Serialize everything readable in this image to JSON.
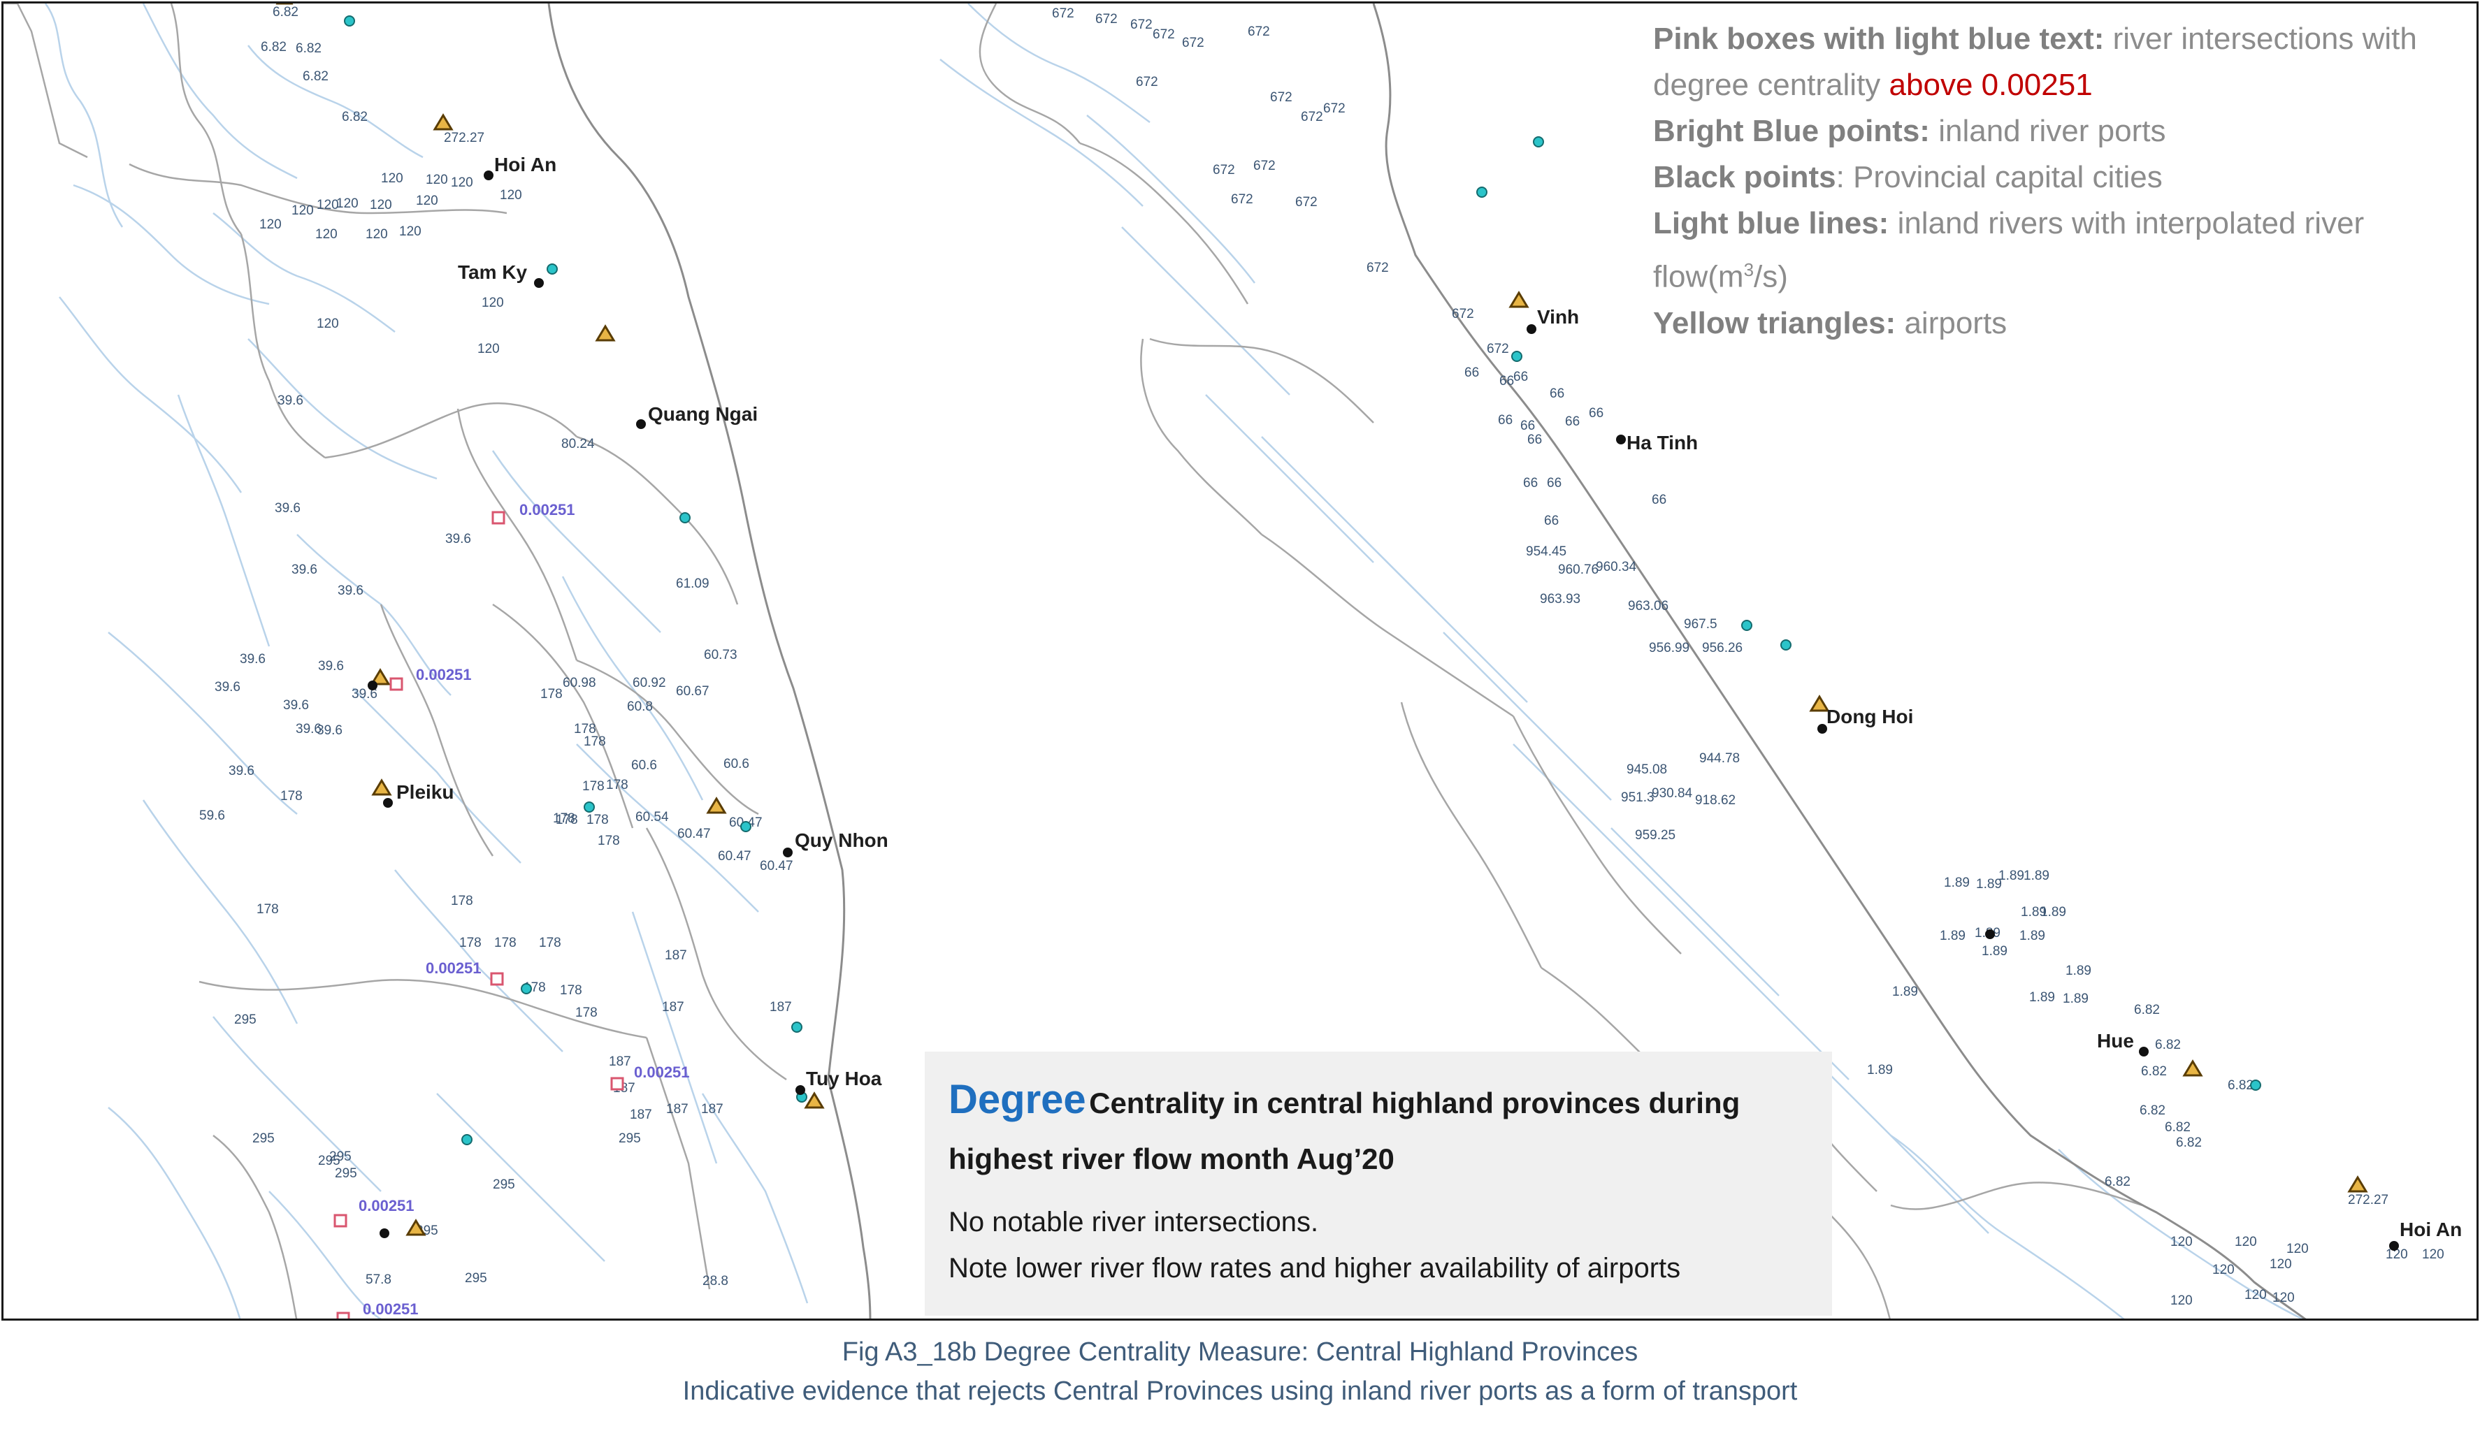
{
  "legend": {
    "pink_label": "Pink boxes with light blue text:",
    "pink_desc": "river intersections with degree centrality",
    "pink_threshold": "above 0.00251",
    "blue_label": "Bright Blue points:",
    "blue_desc": "inland river ports",
    "black_label": "Black points",
    "black_desc": ": Provincial capital cities",
    "lines_label": "Light blue lines:",
    "lines_desc": "inland rivers with interpolated river flow(m",
    "lines_sup": "3",
    "lines_tail": "/s)",
    "tri_label": "Yellow triangles:",
    "tri_desc": "airports"
  },
  "infobox": {
    "title_big": "Degree",
    "title_rest": "Centrality in central highland provinces during highest river flow month Aug’20",
    "note1": "No notable river intersections.",
    "note2": "Note lower river flow rates and higher availability of airports"
  },
  "caption": {
    "line1": "Fig A3_18b Degree Centrality Measure: Central Highland Provinces",
    "line2": "Indicative evidence that rejects Central Provinces using inland river ports as a form of transport"
  },
  "left_map": {
    "cities": [
      "Hoi An",
      "Tam Ky",
      "Quang Ngai",
      "Pleiku",
      "Quy Nhon",
      "Tuy Hoa"
    ],
    "centrality": [
      "0.00251",
      "0.00251",
      "0.00251",
      "0.00251",
      "0.00251",
      "0.00251"
    ],
    "flow_labels": [
      "6.82",
      "6.82",
      "6.82",
      "6.82",
      "6.82",
      "272.27",
      "120",
      "120",
      "120",
      "120",
      "120",
      "120",
      "120",
      "120",
      "120",
      "120",
      "120",
      "120",
      "120",
      "120",
      "120",
      "120",
      "39.6",
      "39.6",
      "39.6",
      "39.6",
      "39.6",
      "39.6",
      "39.6",
      "39.6",
      "39.6",
      "39.6",
      "39.6",
      "39.6",
      "39.6",
      "80.24",
      "61.09",
      "60.73",
      "60.98",
      "60.92",
      "60.8",
      "60.67",
      "60.6",
      "60.6",
      "60.54",
      "60.47",
      "60.47",
      "60.47",
      "60.47",
      "178",
      "178",
      "178",
      "178",
      "178",
      "178",
      "178",
      "178",
      "178",
      "178",
      "178",
      "178",
      "178",
      "178",
      "178",
      "178",
      "178",
      "178",
      "187",
      "187",
      "187",
      "187",
      "187",
      "187",
      "187",
      "187",
      "295",
      "295",
      "295",
      "295",
      "295",
      "295",
      "295",
      "295",
      "295",
      "57.8",
      "28.8",
      "59.6"
    ]
  },
  "right_map": {
    "cities": [
      "Vinh",
      "Ha Tinh",
      "Dong Hoi",
      "Hue",
      "Hoi An"
    ],
    "flow_labels": [
      "672",
      "672",
      "672",
      "672",
      "672",
      "672",
      "672",
      "672",
      "672",
      "672",
      "672",
      "672",
      "672",
      "672",
      "672",
      "672",
      "672",
      "66",
      "66",
      "66",
      "66",
      "66",
      "66",
      "66",
      "66",
      "66",
      "66",
      "66",
      "66",
      "66",
      "954.45",
      "960.76",
      "960.34",
      "963.93",
      "963.06",
      "967.5",
      "956.99",
      "956.26",
      "945.08",
      "944.78",
      "951.3",
      "930.84",
      "918.62",
      "959.25",
      "1.89",
      "1.89",
      "1.89",
      "1.89",
      "1.89",
      "1.89",
      "1.89",
      "1.89",
      "1.89",
      "1.89",
      "1.89",
      "1.89",
      "1.89",
      "1.89",
      "1.89",
      "6.82",
      "6.82",
      "6.82",
      "6.82",
      "6.82",
      "6.82",
      "6.82",
      "6.82",
      "272.27",
      "120",
      "120",
      "120",
      "120",
      "120",
      "120",
      "120",
      "120",
      "120",
      "120"
    ]
  }
}
